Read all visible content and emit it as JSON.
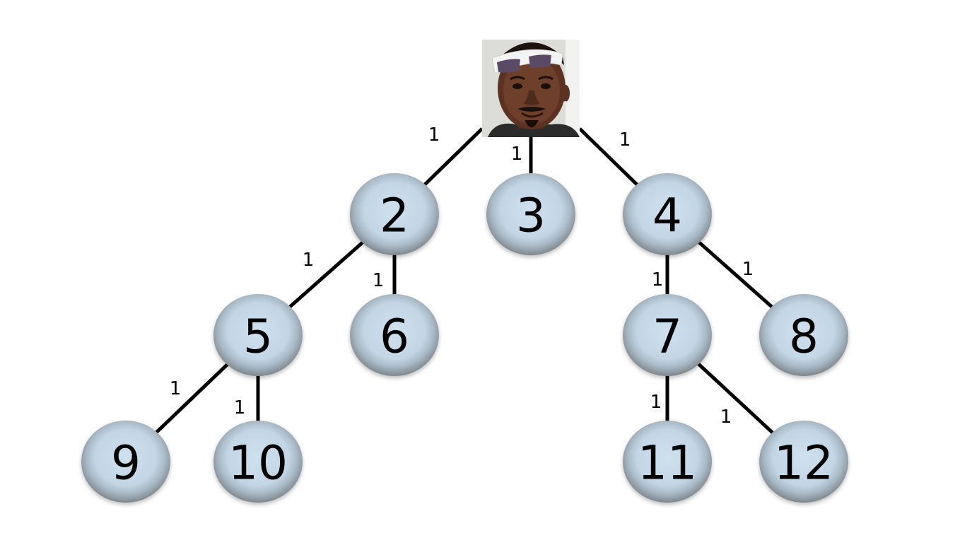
{
  "tree": {
    "root": {
      "image_desc": "photo of a smiling man wearing white sunglasses on his head"
    },
    "nodes": [
      {
        "id": "2",
        "label": "2"
      },
      {
        "id": "3",
        "label": "3"
      },
      {
        "id": "4",
        "label": "4"
      },
      {
        "id": "5",
        "label": "5"
      },
      {
        "id": "6",
        "label": "6"
      },
      {
        "id": "7",
        "label": "7"
      },
      {
        "id": "8",
        "label": "8"
      },
      {
        "id": "9",
        "label": "9"
      },
      {
        "id": "10",
        "label": "10"
      },
      {
        "id": "11",
        "label": "11"
      },
      {
        "id": "12",
        "label": "12"
      }
    ],
    "edges": [
      {
        "from": "root",
        "to": "2",
        "weight": "1"
      },
      {
        "from": "root",
        "to": "3",
        "weight": "1"
      },
      {
        "from": "root",
        "to": "4",
        "weight": "1"
      },
      {
        "from": "2",
        "to": "5",
        "weight": "1"
      },
      {
        "from": "2",
        "to": "6",
        "weight": "1"
      },
      {
        "from": "4",
        "to": "7",
        "weight": "1"
      },
      {
        "from": "4",
        "to": "8",
        "weight": "1"
      },
      {
        "from": "5",
        "to": "9",
        "weight": "1"
      },
      {
        "from": "5",
        "to": "10",
        "weight": "1"
      },
      {
        "from": "7",
        "to": "11",
        "weight": "1"
      },
      {
        "from": "7",
        "to": "12",
        "weight": "1"
      }
    ],
    "colors": {
      "node_fill": "#c5d8e8",
      "node_rim": "#8f979d",
      "edge": "#000000",
      "text": "#000000"
    }
  }
}
